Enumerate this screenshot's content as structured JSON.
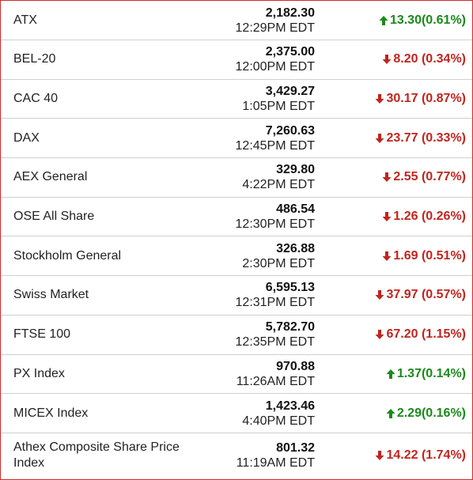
{
  "colors": {
    "up": "#1a8a1a",
    "down": "#c0251f",
    "border": "#d02b2b"
  },
  "rows": [
    {
      "name": "ATX",
      "price": "2,182.30",
      "time": "12:29PM EDT",
      "change": "13.30(0.61%)",
      "dir": "up"
    },
    {
      "name": "BEL-20",
      "price": "2,375.00",
      "time": "12:00PM EDT",
      "change": "8.20 (0.34%)",
      "dir": "down"
    },
    {
      "name": "CAC 40",
      "price": "3,429.27",
      "time": "1:05PM EDT",
      "change": "30.17 (0.87%)",
      "dir": "down"
    },
    {
      "name": "DAX",
      "price": "7,260.63",
      "time": "12:45PM EDT",
      "change": "23.77 (0.33%)",
      "dir": "down"
    },
    {
      "name": "AEX General",
      "price": "329.80",
      "time": "4:22PM EDT",
      "change": "2.55 (0.77%)",
      "dir": "down"
    },
    {
      "name": "OSE All Share",
      "price": "486.54",
      "time": "12:30PM EDT",
      "change": "1.26 (0.26%)",
      "dir": "down"
    },
    {
      "name": "Stockholm General",
      "price": "326.88",
      "time": "2:30PM EDT",
      "change": "1.69 (0.51%)",
      "dir": "down"
    },
    {
      "name": "Swiss Market",
      "price": "6,595.13",
      "time": "12:31PM EDT",
      "change": "37.97 (0.57%)",
      "dir": "down"
    },
    {
      "name": "FTSE 100",
      "price": "5,782.70",
      "time": "12:35PM EDT",
      "change": "67.20 (1.15%)",
      "dir": "down"
    },
    {
      "name": "PX Index",
      "price": "970.88",
      "time": "11:26AM EDT",
      "change": "1.37(0.14%)",
      "dir": "up"
    },
    {
      "name": "MICEX Index",
      "price": "1,423.46",
      "time": "4:40PM EDT",
      "change": "2.29(0.16%)",
      "dir": "up"
    },
    {
      "name": "Athex Composite Share Price Index",
      "price": "801.32",
      "time": "11:19AM EDT",
      "change": "14.22 (1.74%)",
      "dir": "down"
    }
  ]
}
